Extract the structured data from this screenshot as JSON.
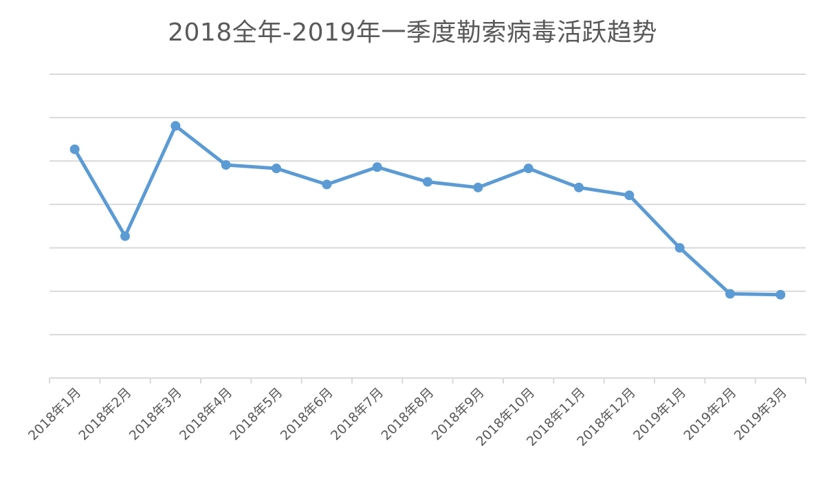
{
  "colors": {
    "series": "#5b9bd5",
    "grid": "#d9d9d9",
    "text": "#595959"
  },
  "chart_data": {
    "type": "line",
    "title": "2018全年-2019年一季度勒索病毒活跃趋势",
    "xlabel": "",
    "ylabel": "",
    "categories": [
      "2018年1月",
      "2018年2月",
      "2018年3月",
      "2018年4月",
      "2018年5月",
      "2018年6月",
      "2018年7月",
      "2018年8月",
      "2018年9月",
      "2018年10月",
      "2018年11月",
      "2018年12月",
      "2019年1月",
      "2019年2月",
      "2019年3月"
    ],
    "series": [
      {
        "values": [
          5.27,
          3.27,
          5.81,
          4.91,
          4.83,
          4.46,
          4.86,
          4.52,
          4.39,
          4.83,
          4.39,
          4.21,
          3.0,
          1.94,
          1.92
        ]
      }
    ],
    "ylim": [
      0,
      7
    ],
    "y_gridlines": [
      0,
      1,
      2,
      3,
      4,
      5,
      6,
      7
    ],
    "y_tick_labels_shown": false,
    "grid": true,
    "legend": "none"
  }
}
